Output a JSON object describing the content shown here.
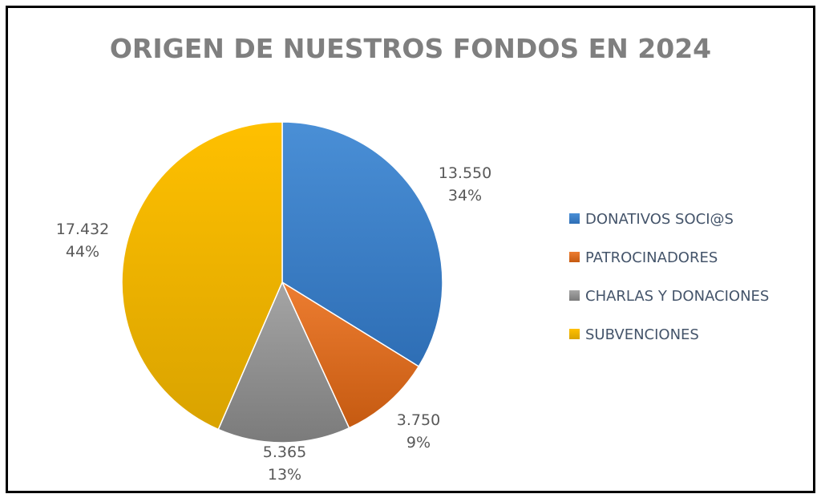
{
  "chart_data": {
    "type": "pie",
    "title": "ORIGEN DE NUESTROS FONDOS EN 2024",
    "categories": [
      "DONATIVOS SOCI@S",
      "PATROCINADORES",
      "CHARLAS Y DONACIONES",
      "SUBVENCIONES"
    ],
    "values": [
      13550,
      3750,
      5365,
      17432
    ],
    "value_labels": [
      "13.550",
      "3.750",
      "5.365",
      "17.432"
    ],
    "percent_labels": [
      "34%",
      "9%",
      "13%",
      "44%"
    ],
    "colors": [
      "#4a8fd6",
      "#ed7d31",
      "#a5a5a5",
      "#ffc000"
    ],
    "colors_dark": [
      "#2e6eb5",
      "#c55a11",
      "#7b7b7b",
      "#d9a300"
    ],
    "legend_position": "right"
  }
}
